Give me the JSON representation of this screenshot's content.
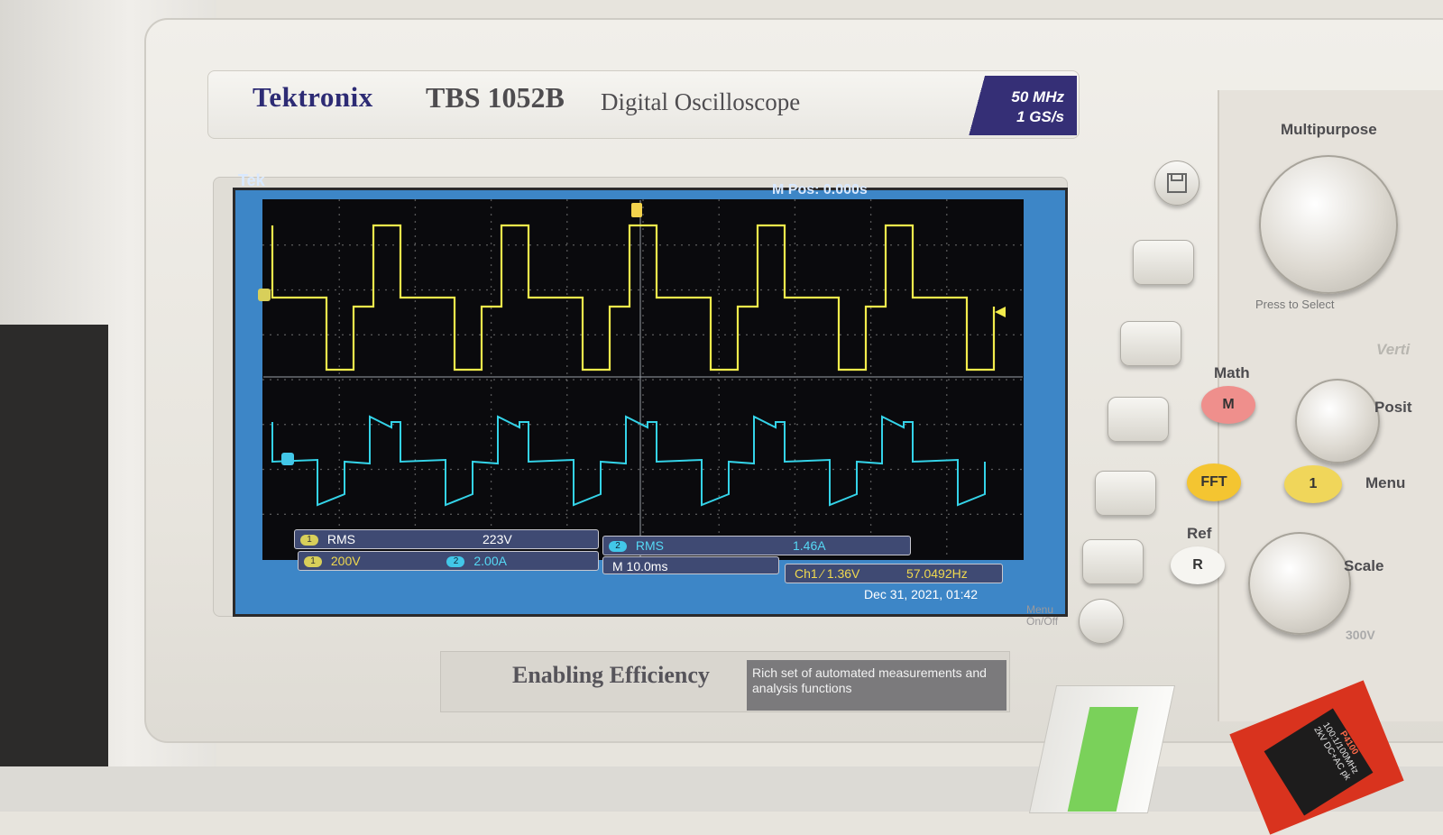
{
  "device": {
    "brand": "Tektronix",
    "model": "TBS 1052B",
    "description": "Digital Oscilloscope",
    "spec_bandwidth": "50 MHz",
    "spec_samplerate": "1 GS/s"
  },
  "screen": {
    "top_left": "Tek",
    "top_right": "M Pos: 0.000s",
    "measurements": {
      "ch1_badge": "1",
      "ch1_label": "RMS",
      "ch1_value": "223V",
      "ch2_badge": "2",
      "ch2_label": "RMS",
      "ch2_value": "1.46A"
    },
    "settings": {
      "ch1_badge": "1",
      "ch1_scale": "200V",
      "ch2_badge": "2",
      "ch2_scale": "2.00A",
      "timebase": "M 10.0ms",
      "trigger": "Ch1 ⁄ 1.36V",
      "frequency": "57.0492Hz"
    },
    "datetime": "Dec 31, 2021, 01:42",
    "traces": [
      {
        "channel": "1",
        "color": "#f3ec4c"
      },
      {
        "channel": "2",
        "color": "#34d3e8"
      }
    ]
  },
  "controls": {
    "multipurpose": "Multipurpose",
    "press_to_select": "Press to Select",
    "vertical": "Verti",
    "math": "Math",
    "math_button": "M",
    "position": "Posit",
    "fft": "FFT",
    "ch1_button": "1",
    "menu": "Menu",
    "ref": "Ref",
    "ref_button": "R",
    "scale": "Scale",
    "menu_onoff_line1": "Menu",
    "menu_onoff_line2": "On/Off",
    "input_rating": "300V"
  },
  "footer": {
    "tagline": "Enabling Efficiency",
    "subtext": "Rich set of automated measurements and analysis functions"
  },
  "probe": {
    "model": "P4100",
    "spec": "100:1/100MHz 2kV DC+AC pk"
  }
}
